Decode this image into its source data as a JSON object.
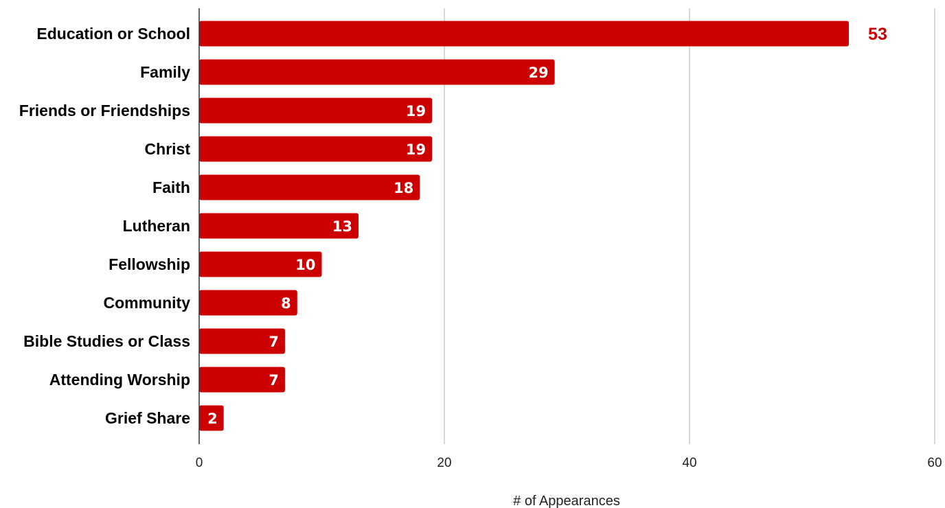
{
  "chart_data": {
    "type": "bar",
    "orientation": "horizontal",
    "categories": [
      "Education or School",
      "Family",
      "Friends or Friendships",
      "Christ",
      "Faith",
      "Lutheran",
      "Fellowship",
      "Community",
      "Bible Studies or Class",
      "Attending Worship",
      "Grief Share"
    ],
    "values": [
      53,
      29,
      19,
      19,
      18,
      13,
      10,
      8,
      7,
      7,
      2
    ],
    "xlabel": "# of Appearances",
    "ylabel": "",
    "xlim": [
      0,
      60
    ],
    "x_ticks": [
      0,
      20,
      40,
      60
    ],
    "grid": true,
    "data_labels": true,
    "bar_color": "#cc0000",
    "label_outside_color": "#cc0000",
    "label_inside_color": "#ffffff"
  }
}
